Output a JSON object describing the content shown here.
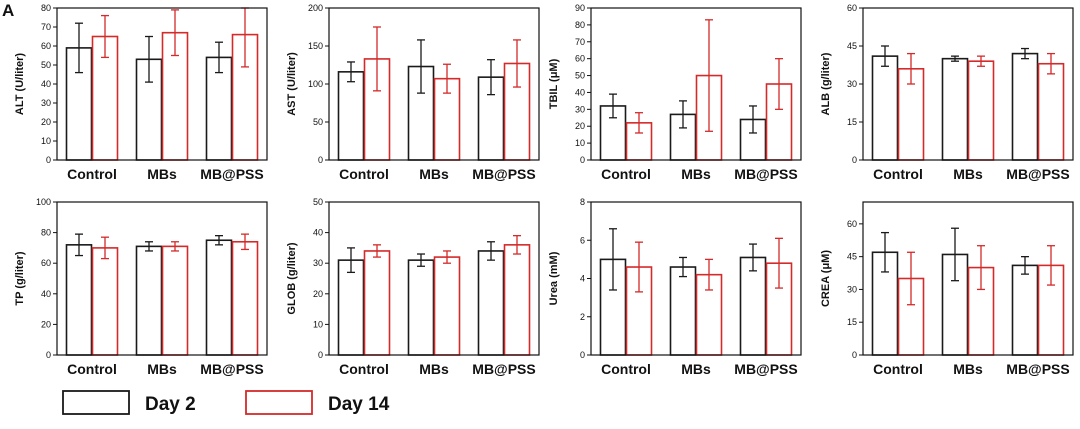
{
  "panel_label": "A",
  "colors": {
    "day2": "#1a1a1a",
    "day14": "#d42a2a"
  },
  "legend": [
    {
      "label": "Day 2",
      "color": "#1a1a1a"
    },
    {
      "label": "Day 14",
      "color": "#d42a2a"
    }
  ],
  "chart_data": [
    {
      "type": "bar",
      "ylabel": "ALT (U/liter)",
      "ylim": [
        0,
        80
      ],
      "yticks": [
        "0",
        "10",
        "20",
        "30",
        "40",
        "50",
        "60",
        "70",
        "80"
      ],
      "tick_step": 10,
      "categories": [
        "Control",
        "MBs",
        "MB@PSS"
      ],
      "series": [
        {
          "name": "Day 2",
          "values": [
            59,
            53,
            54
          ],
          "errors": [
            13,
            12,
            8
          ]
        },
        {
          "name": "Day 14",
          "values": [
            65,
            67,
            66
          ],
          "errors": [
            11,
            12,
            17
          ]
        }
      ]
    },
    {
      "type": "bar",
      "ylabel": "AST (U/liter)",
      "ylim": [
        0,
        200
      ],
      "yticks": [
        "0",
        "50",
        "100",
        "150",
        "200"
      ],
      "tick_step": 50,
      "categories": [
        "Control",
        "MBs",
        "MB@PSS"
      ],
      "series": [
        {
          "name": "Day 2",
          "values": [
            116,
            123,
            109
          ],
          "errors": [
            13,
            35,
            23
          ]
        },
        {
          "name": "Day 14",
          "values": [
            133,
            107,
            127
          ],
          "errors": [
            42,
            19,
            31
          ]
        }
      ]
    },
    {
      "type": "bar",
      "ylabel": "TBIL (μM)",
      "ylim": [
        0,
        90
      ],
      "yticks": [
        "0",
        "10",
        "20",
        "30",
        "40",
        "50",
        "60",
        "70",
        "80",
        "90"
      ],
      "tick_step": 10,
      "categories": [
        "Control",
        "MBs",
        "MB@PSS"
      ],
      "series": [
        {
          "name": "Day 2",
          "values": [
            32,
            27,
            24
          ],
          "errors": [
            7,
            8,
            8
          ]
        },
        {
          "name": "Day 14",
          "values": [
            22,
            50,
            45
          ],
          "errors": [
            6,
            33,
            15
          ]
        }
      ]
    },
    {
      "type": "bar",
      "ylabel": "ALB (g/liter)",
      "ylim": [
        0,
        60
      ],
      "yticks": [
        "0",
        "15",
        "30",
        "45",
        "60"
      ],
      "tick_step": 15,
      "categories": [
        "Control",
        "MBs",
        "MB@PSS"
      ],
      "series": [
        {
          "name": "Day 2",
          "values": [
            41,
            40,
            42
          ],
          "errors": [
            4,
            1,
            2
          ]
        },
        {
          "name": "Day 14",
          "values": [
            36,
            39,
            38
          ],
          "errors": [
            6,
            2,
            4
          ]
        }
      ]
    },
    {
      "type": "bar",
      "ylabel": "TP (g/liter)",
      "ylim": [
        0,
        100
      ],
      "yticks": [
        "0",
        "20",
        "40",
        "60",
        "80",
        "100"
      ],
      "tick_step": 20,
      "categories": [
        "Control",
        "MBs",
        "MB@PSS"
      ],
      "series": [
        {
          "name": "Day 2",
          "values": [
            72,
            71,
            75
          ],
          "errors": [
            7,
            3,
            3
          ]
        },
        {
          "name": "Day 14",
          "values": [
            70,
            71,
            74
          ],
          "errors": [
            7,
            3,
            5
          ]
        }
      ]
    },
    {
      "type": "bar",
      "ylabel": "GLOB (g/liter)",
      "ylim": [
        0,
        50
      ],
      "yticks": [
        "0",
        "10",
        "20",
        "30",
        "40",
        "50"
      ],
      "tick_step": 10,
      "categories": [
        "Control",
        "MBs",
        "MB@PSS"
      ],
      "series": [
        {
          "name": "Day 2",
          "values": [
            31,
            31,
            34
          ],
          "errors": [
            4,
            2,
            3
          ]
        },
        {
          "name": "Day 14",
          "values": [
            34,
            32,
            36
          ],
          "errors": [
            2,
            2,
            3
          ]
        }
      ]
    },
    {
      "type": "bar",
      "ylabel": "Urea (mM)",
      "ylim": [
        0,
        8
      ],
      "yticks": [
        "0",
        "2",
        "4",
        "6",
        "8"
      ],
      "tick_step": 2,
      "categories": [
        "Control",
        "MBs",
        "MB@PSS"
      ],
      "series": [
        {
          "name": "Day 2",
          "values": [
            5.0,
            4.6,
            5.1
          ],
          "errors": [
            1.6,
            0.5,
            0.7
          ]
        },
        {
          "name": "Day 14",
          "values": [
            4.6,
            4.2,
            4.8
          ],
          "errors": [
            1.3,
            0.8,
            1.3
          ]
        }
      ]
    },
    {
      "type": "bar",
      "ylabel": "CREA (μM)",
      "ylim": [
        0,
        70
      ],
      "yticks": [
        "0",
        "15",
        "30",
        "45",
        "60"
      ],
      "tick_step": 15,
      "categories": [
        "Control",
        "MBs",
        "MB@PSS"
      ],
      "series": [
        {
          "name": "Day 2",
          "values": [
            47,
            46,
            41
          ],
          "errors": [
            9,
            12,
            4
          ]
        },
        {
          "name": "Day 14",
          "values": [
            35,
            40,
            41
          ],
          "errors": [
            12,
            10,
            9
          ]
        }
      ]
    }
  ]
}
